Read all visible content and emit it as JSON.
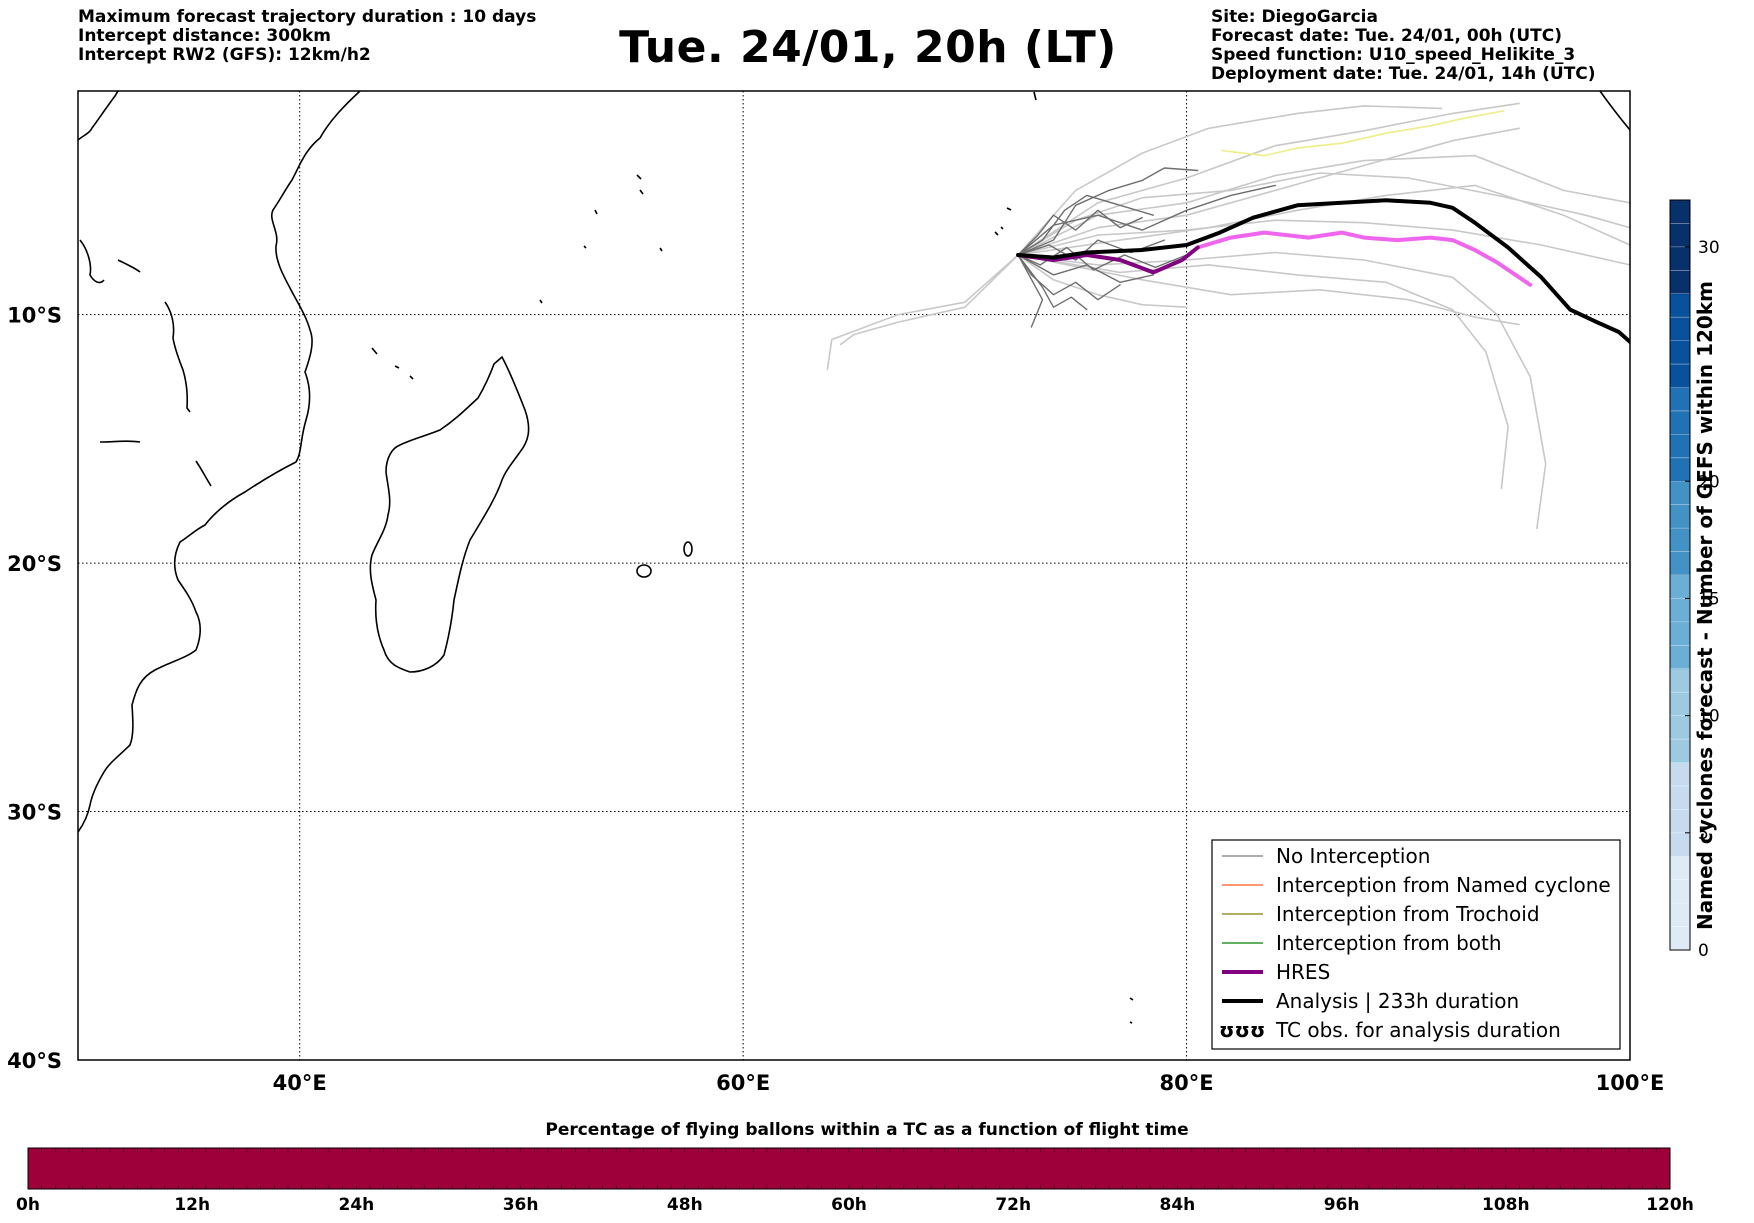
{
  "header": {
    "left": [
      "Maximum forecast trajectory duration : 10 days",
      "Intercept distance: 300km",
      "Intercept RW2 (GFS):  12km/h2"
    ],
    "title": "Tue. 24/01, 20h (LT)",
    "right": [
      "Site: DiegoGarcia",
      "Forecast date: Tue. 24/01, 00h (UTC)",
      "Speed function: U10_speed_Helikite_3",
      "Deployment date: Tue. 24/01, 14h (UTC)"
    ]
  },
  "map": {
    "lon_range": [
      30,
      100
    ],
    "lat_range": [
      -40,
      -1
    ],
    "lon_ticks": [
      {
        "value": 40,
        "label": "40°E"
      },
      {
        "value": 60,
        "label": "60°E"
      },
      {
        "value": 80,
        "label": "80°E"
      },
      {
        "value": 100,
        "label": "100°E"
      }
    ],
    "lat_ticks": [
      {
        "value": -10,
        "label": "10°S"
      },
      {
        "value": -20,
        "label": "20°S"
      },
      {
        "value": -30,
        "label": "30°S"
      },
      {
        "value": -40,
        "label": "40°S"
      }
    ],
    "colors": {
      "no_interception": "#7a7a7a",
      "named_cyclone": "#ff5a1a",
      "trochoid": "#808000",
      "both": "#008000",
      "hres": "#800080",
      "analysis": "#000000",
      "ensemble_light": "#c8c8c8",
      "ensemble_dark": "#6e6e6e",
      "magenta_track": "#ee66ee",
      "yellow_track": "#eeee88"
    },
    "tracks": {
      "analysis": [
        [
          72.4,
          -7.6
        ],
        [
          74,
          -7.7
        ],
        [
          75.5,
          -7.5
        ],
        [
          78,
          -7.4
        ],
        [
          80,
          -7.2
        ],
        [
          81.5,
          -6.7
        ],
        [
          83,
          -6.1
        ],
        [
          85,
          -5.6
        ],
        [
          87,
          -5.5
        ],
        [
          89,
          -5.4
        ],
        [
          91,
          -5.5
        ],
        [
          92,
          -5.7
        ],
        [
          93,
          -6.3
        ],
        [
          94.5,
          -7.3
        ],
        [
          96,
          -8.5
        ],
        [
          97.3,
          -9.8
        ],
        [
          98.5,
          -10.3
        ],
        [
          99.5,
          -10.7
        ],
        [
          100,
          -11.1
        ]
      ],
      "hres": [
        [
          72.4,
          -7.6
        ],
        [
          74,
          -7.8
        ],
        [
          75.5,
          -7.6
        ],
        [
          77,
          -7.8
        ],
        [
          78.5,
          -8.3
        ],
        [
          79.8,
          -7.8
        ],
        [
          80.5,
          -7.3
        ]
      ],
      "magenta": [
        [
          80.5,
          -7.3
        ],
        [
          82,
          -6.9
        ],
        [
          83.5,
          -6.7
        ],
        [
          85.5,
          -6.9
        ],
        [
          87,
          -6.7
        ],
        [
          88,
          -6.9
        ],
        [
          89.5,
          -7
        ],
        [
          91,
          -6.9
        ],
        [
          92,
          -7
        ],
        [
          93,
          -7.4
        ],
        [
          94,
          -7.9
        ],
        [
          95,
          -8.5
        ],
        [
          95.5,
          -8.8
        ]
      ],
      "yellow": [
        [
          81.6,
          -3.4
        ],
        [
          83.5,
          -3.6
        ],
        [
          85,
          -3.3
        ],
        [
          87,
          -3.1
        ],
        [
          89,
          -2.7
        ],
        [
          91,
          -2.4
        ],
        [
          92.5,
          -2.1
        ],
        [
          94.3,
          -1.8
        ]
      ],
      "light": [
        [
          [
            72.4,
            -7.6
          ],
          [
            76,
            -6.5
          ],
          [
            80,
            -6
          ],
          [
            84,
            -5
          ],
          [
            88,
            -4
          ],
          [
            92,
            -3
          ],
          [
            95,
            -2.5
          ]
        ],
        [
          [
            72.4,
            -7.6
          ],
          [
            76,
            -5.5
          ],
          [
            80,
            -4.5
          ],
          [
            84,
            -3.2
          ],
          [
            88,
            -2.6
          ],
          [
            92,
            -1.9
          ],
          [
            95,
            -1.5
          ]
        ],
        [
          [
            72.4,
            -7.6
          ],
          [
            75,
            -5
          ],
          [
            78,
            -3.5
          ],
          [
            81,
            -2.5
          ],
          [
            85,
            -1.9
          ],
          [
            88,
            -1.6
          ],
          [
            91.5,
            -1.7
          ]
        ],
        [
          [
            72.4,
            -7.6
          ],
          [
            76,
            -6
          ],
          [
            80,
            -5.5
          ],
          [
            84,
            -4.4
          ],
          [
            88,
            -3.8
          ],
          [
            93,
            -3.6
          ],
          [
            97,
            -5
          ],
          [
            100,
            -5.5
          ]
        ],
        [
          [
            72.4,
            -7.6
          ],
          [
            77,
            -7
          ],
          [
            81,
            -6.5
          ],
          [
            85,
            -5.8
          ],
          [
            89,
            -5.2
          ],
          [
            93,
            -4.8
          ],
          [
            97,
            -6
          ],
          [
            100,
            -7.2
          ]
        ],
        [
          [
            72.4,
            -7.6
          ],
          [
            76,
            -8
          ],
          [
            80,
            -7.8
          ],
          [
            84,
            -7.5
          ],
          [
            88,
            -7.8
          ],
          [
            92,
            -8.5
          ],
          [
            94,
            -10
          ],
          [
            95.5,
            -12.5
          ],
          [
            96.2,
            -16
          ],
          [
            95.8,
            -18.6
          ]
        ],
        [
          [
            72.4,
            -7.6
          ],
          [
            77,
            -8.3
          ],
          [
            81,
            -8
          ],
          [
            85,
            -8.4
          ],
          [
            89,
            -8.7
          ],
          [
            92,
            -9.8
          ],
          [
            93.5,
            -11.5
          ],
          [
            94.5,
            -14.5
          ],
          [
            94.2,
            -17
          ]
        ],
        [
          [
            72.4,
            -7.6
          ],
          [
            78,
            -8.6
          ],
          [
            82,
            -9.2
          ],
          [
            86,
            -9
          ],
          [
            90,
            -9.4
          ],
          [
            93,
            -10.1
          ],
          [
            95,
            -10.4
          ]
        ],
        [
          [
            72.4,
            -7.6
          ],
          [
            70,
            -9.5
          ],
          [
            67,
            -10
          ],
          [
            64,
            -11
          ],
          [
            63.8,
            -12.2
          ]
        ],
        [
          [
            72.4,
            -7.6
          ],
          [
            70,
            -9.7
          ],
          [
            67,
            -10.3
          ],
          [
            65,
            -10.8
          ],
          [
            64.4,
            -11.2
          ]
        ],
        [
          [
            72.4,
            -7.6
          ],
          [
            75,
            -6.2
          ],
          [
            78,
            -5.3
          ],
          [
            82,
            -5
          ],
          [
            86,
            -4.3
          ],
          [
            90,
            -4.5
          ],
          [
            94,
            -5.2
          ],
          [
            98,
            -6
          ],
          [
            100,
            -6.5
          ]
        ],
        [
          [
            72.4,
            -7.6
          ],
          [
            76,
            -6.8
          ],
          [
            80,
            -6.6
          ],
          [
            84,
            -6.2
          ],
          [
            88,
            -6.3
          ],
          [
            92,
            -6.6
          ],
          [
            96,
            -7.2
          ],
          [
            100,
            -8
          ]
        ],
        [
          [
            72.4,
            -7.6
          ],
          [
            74,
            -8.6
          ],
          [
            76,
            -9.2
          ],
          [
            78,
            -9.6
          ],
          [
            80,
            -9.7
          ]
        ]
      ],
      "dark": [
        [
          [
            72.4,
            -7.6
          ],
          [
            73.5,
            -7
          ],
          [
            74.5,
            -5.8
          ],
          [
            75.5,
            -5.2
          ],
          [
            77,
            -5.6
          ],
          [
            78.5,
            -6
          ]
        ],
        [
          [
            72.4,
            -7.6
          ],
          [
            73,
            -8.4
          ],
          [
            74,
            -9.2
          ],
          [
            75,
            -8.7
          ],
          [
            76,
            -9.4
          ],
          [
            77,
            -8.8
          ]
        ],
        [
          [
            72.4,
            -7.6
          ],
          [
            74,
            -7
          ],
          [
            75,
            -5.6
          ],
          [
            76.5,
            -5
          ],
          [
            78,
            -4.6
          ],
          [
            79,
            -4.1
          ],
          [
            80.5,
            -4.2
          ]
        ],
        [
          [
            72.4,
            -7.6
          ],
          [
            73.5,
            -8.9
          ],
          [
            74,
            -9.7
          ],
          [
            74.8,
            -9.3
          ],
          [
            75.5,
            -9.8
          ]
        ],
        [
          [
            72.4,
            -7.6
          ],
          [
            74,
            -6.4
          ],
          [
            76,
            -6
          ],
          [
            78,
            -6.6
          ],
          [
            80,
            -5.8
          ],
          [
            82,
            -5.2
          ],
          [
            84,
            -4.8
          ]
        ],
        [
          [
            72.4,
            -7.6
          ],
          [
            73.8,
            -7.2
          ],
          [
            75,
            -7.8
          ],
          [
            76,
            -7
          ],
          [
            77.5,
            -7.5
          ],
          [
            79,
            -7
          ]
        ],
        [
          [
            72.4,
            -7.6
          ],
          [
            73.3,
            -6.8
          ],
          [
            74,
            -6
          ],
          [
            75,
            -6.6
          ],
          [
            76,
            -5.8
          ],
          [
            77,
            -6.5
          ],
          [
            78,
            -6.1
          ]
        ],
        [
          [
            72.4,
            -7.6
          ],
          [
            74,
            -8.4
          ],
          [
            75.5,
            -8
          ],
          [
            77,
            -8.7
          ],
          [
            78.5,
            -8.4
          ]
        ],
        [
          [
            72.4,
            -7.6
          ],
          [
            73.5,
            -9.4
          ],
          [
            73,
            -10.5
          ]
        ],
        [
          [
            72.4,
            -7.6
          ],
          [
            73.4,
            -8
          ],
          [
            74.6,
            -7.3
          ],
          [
            75.8,
            -8.2
          ],
          [
            77.2,
            -7.6
          ],
          [
            78.6,
            -8.1
          ],
          [
            80,
            -7.6
          ]
        ]
      ]
    },
    "legend": [
      {
        "key": "no_interception",
        "label": "No Interception"
      },
      {
        "key": "named_cyclone",
        "label": "Interception from Named cyclone"
      },
      {
        "key": "trochoid",
        "label": "Interception from Trochoid"
      },
      {
        "key": "both",
        "label": "Interception from both"
      },
      {
        "key": "hres",
        "label": "HRES"
      },
      {
        "key": "analysis",
        "label": "Analysis | 233h duration"
      },
      {
        "key": "tc_obs",
        "label": "TC obs. for analysis duration",
        "symbol": "ʊʊʊ"
      }
    ]
  },
  "colorbar_right": {
    "title": "Named cyclones forecast - Number of GEFS within 120km",
    "range": [
      0,
      32
    ],
    "ticks": [
      0,
      5,
      10,
      15,
      20,
      30
    ],
    "colors": [
      "#deebf7",
      "#c6dbef",
      "#9ecae1",
      "#6baed6",
      "#4292c6",
      "#2171b5",
      "#08519c",
      "#08306b"
    ]
  },
  "colorbar_bottom": {
    "title": "Percentage of flying ballons within a TC as a function of flight time",
    "fill_color": "#9e003a",
    "ticks": [
      "0h",
      "12h",
      "24h",
      "36h",
      "48h",
      "60h",
      "72h",
      "84h",
      "96h",
      "108h",
      "120h"
    ]
  }
}
